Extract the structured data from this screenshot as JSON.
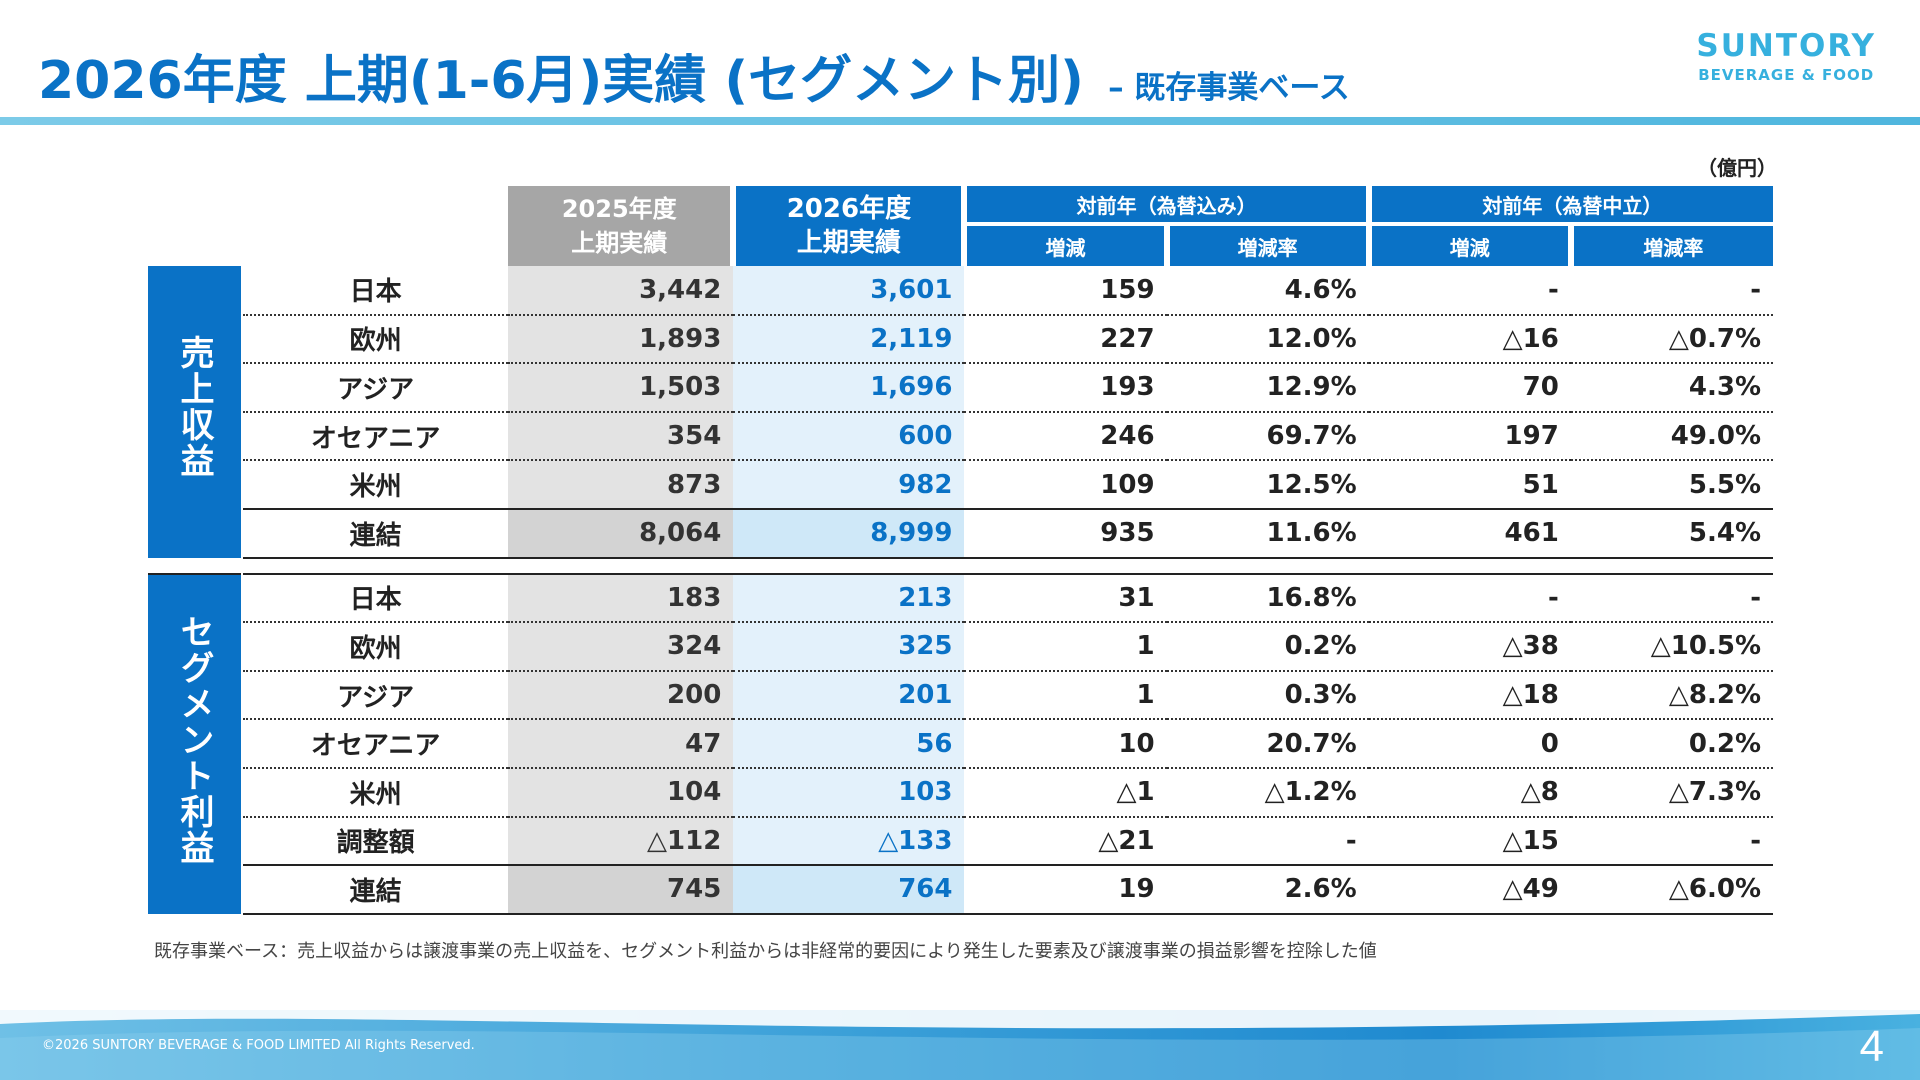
{
  "header": {
    "title": "2026年度 上期(1-6月)実績 (セグメント別)",
    "subtitle": "– 既存事業ベース"
  },
  "logo": {
    "brand": "SUNTORY",
    "sub": "BEVERAGE & FOOD"
  },
  "unit": "（億円）",
  "table": {
    "col_2025": [
      "2025年度",
      "上期実績"
    ],
    "col_2026": [
      "2026年度",
      "上期実績"
    ],
    "group_fx_incl": "対前年（為替込み）",
    "group_fx_neutral": "対前年（為替中立）",
    "sub_change": "増減",
    "sub_rate": "増減率",
    "sections": [
      {
        "side_label": "売上収益",
        "rows": [
          {
            "label": "日本",
            "y25": "3,442",
            "y26": "3,601",
            "chg": "159",
            "rate": "4.6%",
            "chg_n": "-",
            "rate_n": "-"
          },
          {
            "label": "欧州",
            "y25": "1,893",
            "y26": "2,119",
            "chg": "227",
            "rate": "12.0%",
            "chg_n": "△16",
            "rate_n": "△0.7%"
          },
          {
            "label": "アジア",
            "y25": "1,503",
            "y26": "1,696",
            "chg": "193",
            "rate": "12.9%",
            "chg_n": "70",
            "rate_n": "4.3%"
          },
          {
            "label": "オセアニア",
            "y25": "354",
            "y26": "600",
            "chg": "246",
            "rate": "69.7%",
            "chg_n": "197",
            "rate_n": "49.0%"
          },
          {
            "label": "米州",
            "y25": "873",
            "y26": "982",
            "chg": "109",
            "rate": "12.5%",
            "chg_n": "51",
            "rate_n": "5.5%"
          },
          {
            "label": "連結",
            "y25": "8,064",
            "y26": "8,999",
            "chg": "935",
            "rate": "11.6%",
            "chg_n": "461",
            "rate_n": "5.4%"
          }
        ]
      },
      {
        "side_label": "セグメント利益",
        "rows": [
          {
            "label": "日本",
            "y25": "183",
            "y26": "213",
            "chg": "31",
            "rate": "16.8%",
            "chg_n": "-",
            "rate_n": "-"
          },
          {
            "label": "欧州",
            "y25": "324",
            "y26": "325",
            "chg": "1",
            "rate": "0.2%",
            "chg_n": "△38",
            "rate_n": "△10.5%"
          },
          {
            "label": "アジア",
            "y25": "200",
            "y26": "201",
            "chg": "1",
            "rate": "0.3%",
            "chg_n": "△18",
            "rate_n": "△8.2%"
          },
          {
            "label": "オセアニア",
            "y25": "47",
            "y26": "56",
            "chg": "10",
            "rate": "20.7%",
            "chg_n": "0",
            "rate_n": "0.2%"
          },
          {
            "label": "米州",
            "y25": "104",
            "y26": "103",
            "chg": "△1",
            "rate": "△1.2%",
            "chg_n": "△8",
            "rate_n": "△7.3%"
          },
          {
            "label": "調整額",
            "y25": "△112",
            "y26": "△133",
            "chg": "△21",
            "rate": "-",
            "chg_n": "△15",
            "rate_n": "-"
          },
          {
            "label": "連結",
            "y25": "745",
            "y26": "764",
            "chg": "19",
            "rate": "2.6%",
            "chg_n": "△49",
            "rate_n": "△6.0%"
          }
        ]
      }
    ]
  },
  "footnote": "既存事業ベース：売上収益からは譲渡事業の売上収益を、セグメント利益からは非経常的要因により発生した要素及び譲渡事業の損益影響を控除した値",
  "footer": {
    "copyright": "©2026 SUNTORY BEVERAGE & FOOD LIMITED All Rights Reserved.",
    "page_number": "4"
  },
  "colors": {
    "accent": "#0a72c6",
    "logo": "#36b0de",
    "y25_fill": "#e3e3e3",
    "y26_fill": "#e3f1fb"
  }
}
